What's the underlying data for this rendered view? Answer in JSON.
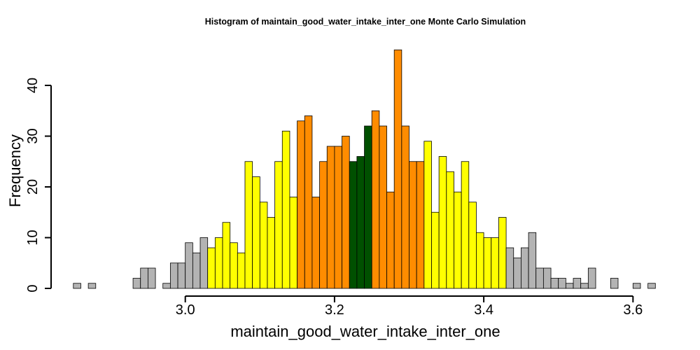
{
  "chart_data": {
    "type": "bar",
    "title": "Histogram of  maintain_good_water_intake_inter_one  Monte Carlo Simulation",
    "xlabel": "maintain_good_water_intake_inter_one",
    "ylabel": "Frequency",
    "bin_start": 2.85,
    "bin_width": 0.01,
    "frequencies": [
      1,
      0,
      1,
      0,
      0,
      0,
      0,
      0,
      2,
      4,
      4,
      0,
      1,
      5,
      5,
      9,
      7,
      10,
      8,
      10,
      13,
      9,
      7,
      25,
      22,
      17,
      14,
      25,
      31,
      18,
      33,
      34,
      18,
      25,
      28,
      28,
      30,
      25,
      26,
      32,
      35,
      32,
      19,
      47,
      32,
      25,
      25,
      29,
      15,
      26,
      23,
      19,
      25,
      17,
      11,
      10,
      10,
      14,
      8,
      6,
      8,
      11,
      4,
      4,
      2,
      2,
      1,
      2,
      1,
      4,
      0,
      0,
      2,
      0,
      0,
      1,
      0,
      1
    ],
    "bands": [
      {
        "range": [
          2.85,
          3.03
        ],
        "color": "#b3b3b3"
      },
      {
        "range": [
          3.03,
          3.15
        ],
        "color": "#ffff00"
      },
      {
        "range": [
          3.15,
          3.22
        ],
        "color": "#ff8c00"
      },
      {
        "range": [
          3.22,
          3.25
        ],
        "color": "#005000"
      },
      {
        "range": [
          3.25,
          3.32
        ],
        "color": "#ff8c00"
      },
      {
        "range": [
          3.32,
          3.43
        ],
        "color": "#ffff00"
      },
      {
        "range": [
          3.43,
          3.63
        ],
        "color": "#b3b3b3"
      }
    ],
    "xlim": [
      2.85,
      3.63
    ],
    "ylim": [
      0,
      47
    ],
    "x_ticks": [
      3.0,
      3.2,
      3.4,
      3.6
    ],
    "x_tick_labels": [
      "3.0",
      "3.2",
      "3.4",
      "3.6"
    ],
    "y_ticks": [
      0,
      10,
      20,
      30,
      40
    ],
    "y_tick_labels": [
      "0",
      "10",
      "20",
      "30",
      "40"
    ],
    "grid": false,
    "legend": "none"
  }
}
